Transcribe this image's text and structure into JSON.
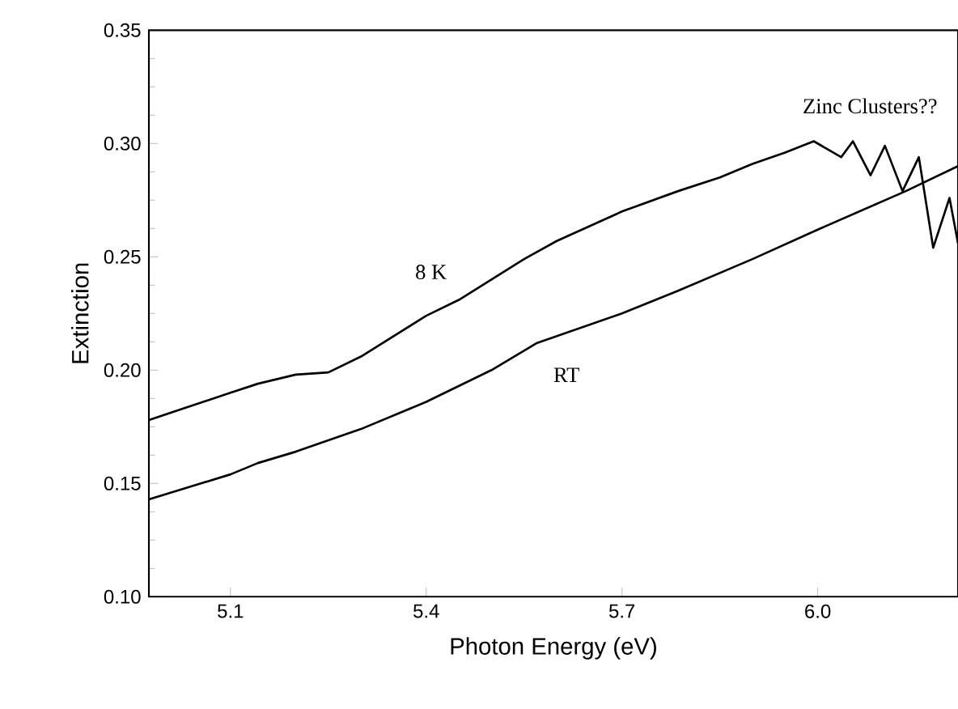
{
  "chart_data": {
    "type": "line",
    "xlabel": "Photon Energy (eV)",
    "ylabel": "Extinction",
    "xlim": [
      4.975,
      6.215
    ],
    "ylim": [
      0.1,
      0.35
    ],
    "xticks": [
      5.1,
      5.4,
      5.7,
      {
        "value": 6,
        "label": "6.0"
      }
    ],
    "yticks": [
      {
        "value": 0.1,
        "label": "0.10"
      },
      0.15,
      {
        "value": 0.2,
        "label": "0.20"
      },
      0.25,
      {
        "value": 0.3,
        "label": "0.30"
      },
      0.35
    ],
    "grid": false,
    "marker": "none",
    "line_style": "solid",
    "series": [
      {
        "color": "#000000",
        "x": [
          4.975,
          5.1,
          5.142,
          5.2,
          5.25,
          5.3,
          5.4,
          5.45,
          5.5,
          5.55,
          5.6,
          5.7,
          5.786,
          5.85,
          5.9,
          5.95,
          5.994,
          6.036,
          6.054,
          6.081,
          6.103,
          6.13,
          6.155,
          6.177,
          6.202,
          6.215
        ],
        "values": [
          0.178,
          0.19,
          0.194,
          0.198,
          0.199,
          0.206,
          0.224,
          0.231,
          0.24,
          0.249,
          0.257,
          0.27,
          0.279,
          0.285,
          0.291,
          0.296,
          0.301,
          0.294,
          0.301,
          0.286,
          0.299,
          0.279,
          0.294,
          0.254,
          0.276,
          0.256
        ]
      },
      {
        "color": "#000000",
        "x": [
          4.975,
          5.1,
          5.142,
          5.2,
          5.3,
          5.4,
          5.5,
          5.57,
          5.7,
          5.786,
          5.9,
          6.0,
          6.135,
          6.215
        ],
        "values": [
          0.143,
          0.154,
          0.159,
          0.164,
          0.174,
          0.186,
          0.2,
          0.212,
          0.225,
          0.235,
          0.249,
          0.262,
          0.279,
          0.29
        ]
      }
    ],
    "annotations": [
      {
        "text": "8 K",
        "x": 5.45,
        "y": 0.231
      },
      {
        "text": "RT",
        "x": 5.57,
        "y": 0.212
      },
      "Zinc Clusters??"
    ]
  }
}
